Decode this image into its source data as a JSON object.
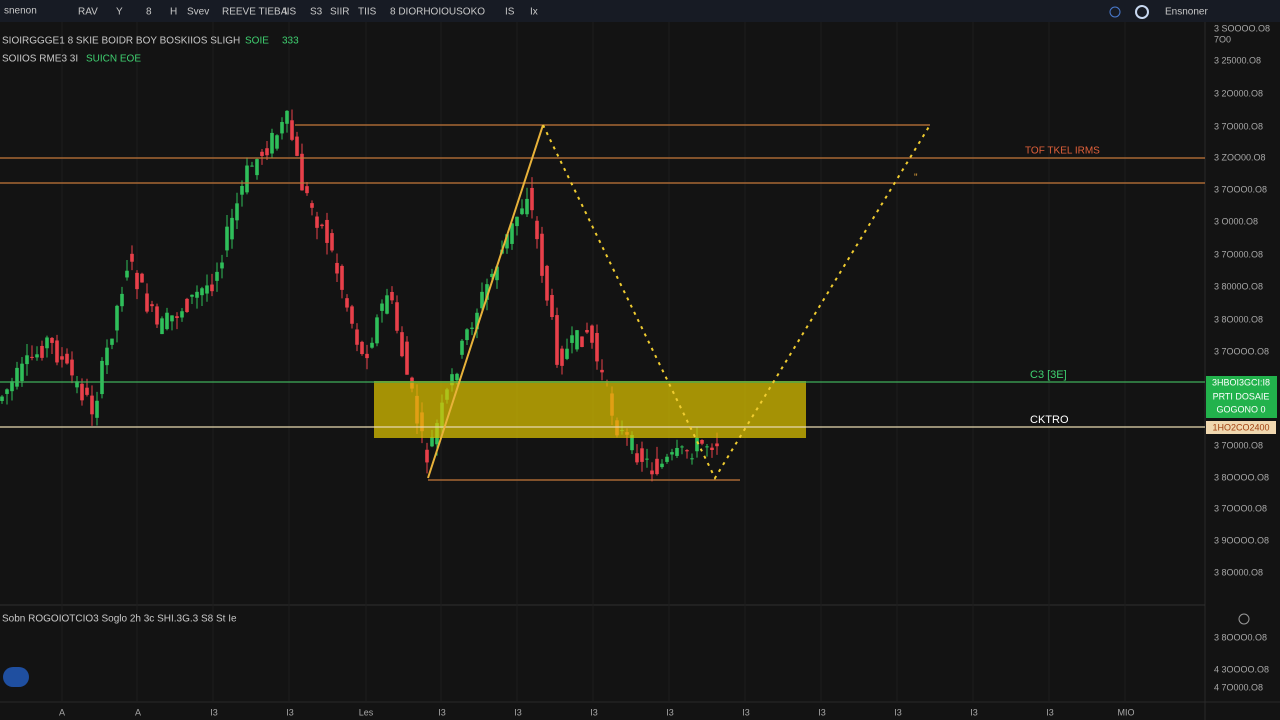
{
  "toolbar": {
    "symbol": "snenon",
    "items": [
      "RAV",
      "Y",
      "8",
      "H",
      "Svev",
      "REEVE TIEBA",
      "IIS",
      "S3",
      "SIIR",
      "TIIS",
      "8 DIORHOIOUSOKO",
      "IS",
      "Ix"
    ],
    "account": "Ensnoner"
  },
  "header": {
    "line1": "SIOIRGGGE1 8 SKIE BOIDR BOY BOSKIIOS SLIGH",
    "line1_tag": "SOIE",
    "line1_value": "333",
    "line2": "SOIIOS RME3 3I",
    "line2_value": "SUICN EOE"
  },
  "levels": {
    "top": "TOF TKEL IRMS",
    "top_mark": "\"",
    "support": "C3 [3E]",
    "current": "CKTRO"
  },
  "price_scale": {
    "labels": [
      "3 SOOOO.O8",
      "7O0",
      "3 25000.O8",
      "3 2O000.O8",
      "3 7O000.O8",
      "3 ZOO00.O8",
      "3 7OOO0.O8",
      "3 O000.O8",
      "3 7O000.O8",
      "3 8000O.O8",
      "3 8O000.O8",
      "3 7OOOO.O8",
      "3 7O000.O8",
      "3 8OOOO.O8",
      "3 7OOO0.O8",
      "3 9OOOO.O8",
      "3 8O000.O8",
      "3 8OOO0.O8",
      "4 3OOOO.O8",
      "4 7O000.O8"
    ],
    "green_box": [
      "3HBOI3GCI:I8",
      "PRTI DOSAIE",
      "GOGONO 0"
    ],
    "orange_box": "1HO2CO2400"
  },
  "indicator": {
    "label": "Sobn ROGOIOTCIO3  Soglo  2h  3c  SHI.3G.3  S8  St  Ie"
  },
  "time_axis": {
    "labels": [
      "A",
      "A",
      "I3",
      "I3",
      "Les",
      "I3",
      "I3",
      "I3",
      "I3",
      "I3",
      "I3",
      "I3",
      "I3",
      "I3",
      "MIO"
    ]
  }
}
